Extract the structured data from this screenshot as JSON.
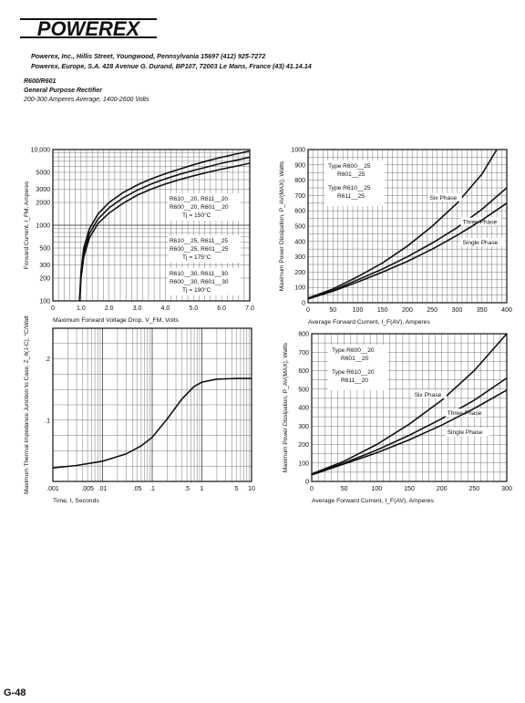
{
  "header": {
    "brand": "POWEREX",
    "address_us": "Powerex, Inc., Hillis Street, Youngwood, Pennsylvania 15697 (412) 925-7272",
    "address_eu": "Powerex, Europe, S.A. 428 Avenue G. Durand, BP107, 72003 Le Mans, France (43) 41.14.14",
    "part_number": "R600/R601",
    "subtitle": "General Purpose Rectifier",
    "rating": "200-300 Amperes Average, 1400-2600 Volts"
  },
  "footer": {
    "page": "G-48"
  },
  "chart_data": [
    {
      "id": "forward-characteristics",
      "type": "line",
      "xlabel": "Maximum Forward Voltage Drop, V_FM, Volts",
      "ylabel": "Forward Current, I_FM, Amperes",
      "x_ticks": [
        "0",
        "1.0",
        "2.0",
        "3.0",
        "4.0",
        "5.0",
        "6.0",
        "7.0"
      ],
      "y_ticks": [
        "100",
        "200",
        "300",
        "500",
        "1000",
        "2000",
        "3000",
        "5000",
        "10,000"
      ],
      "y_scale": "log",
      "xlim": [
        0,
        7
      ],
      "ylim": [
        100,
        10000
      ],
      "annotations": [
        {
          "lines": [
            "R610__20, R611__20",
            "R600__20, R601__20",
            "Tj = 150°C"
          ]
        },
        {
          "lines": [
            "R610__25, R611__25",
            "R600__25, R601__25",
            "Tj = 175°C"
          ]
        },
        {
          "lines": [
            "R610__30, R611__30",
            "R600__30, R601__30",
            "Tj = 190°C"
          ]
        }
      ],
      "series": [
        {
          "x": [
            0.95,
            1.0,
            1.1,
            1.3,
            1.6,
            2.0,
            2.5,
            3.0,
            3.5,
            4.0,
            4.5,
            5.0,
            5.5,
            6.0,
            6.5,
            7.0
          ],
          "y": [
            100,
            250,
            500,
            900,
            1400,
            2000,
            2700,
            3400,
            4100,
            4800,
            5500,
            6300,
            7100,
            7900,
            8700,
            9600
          ]
        },
        {
          "x": [
            0.95,
            1.0,
            1.1,
            1.3,
            1.6,
            2.0,
            2.5,
            3.0,
            3.5,
            4.0,
            4.5,
            5.0,
            5.5,
            6.0,
            6.5,
            7.0
          ],
          "y": [
            100,
            220,
            430,
            780,
            1200,
            1700,
            2300,
            2900,
            3500,
            4100,
            4700,
            5300,
            5900,
            6600,
            7200,
            7900
          ]
        },
        {
          "x": [
            0.95,
            1.0,
            1.1,
            1.3,
            1.6,
            2.0,
            2.5,
            3.0,
            3.5,
            4.0,
            4.5,
            5.0,
            5.5,
            6.0,
            6.5,
            7.0
          ],
          "y": [
            100,
            200,
            380,
            680,
            1050,
            1450,
            1950,
            2500,
            3000,
            3500,
            4000,
            4500,
            5000,
            5500,
            6000,
            6600
          ]
        }
      ]
    },
    {
      "id": "power-dissipation-25",
      "type": "line",
      "xlabel": "Average Forward Current, I_F(AV), Amperes",
      "ylabel": "Maximum Power Dissipation, P_AV(MAX), Watts",
      "x_ticks": [
        "0",
        "50",
        "100",
        "150",
        "200",
        "250",
        "300",
        "350",
        "400"
      ],
      "y_ticks": [
        "0",
        "100",
        "200",
        "300",
        "400",
        "500",
        "600",
        "700",
        "800",
        "900",
        "1000"
      ],
      "xlim": [
        0,
        400
      ],
      "ylim": [
        0,
        1000
      ],
      "legend": [
        "Type R600__25",
        "R601__25",
        "Type R610__25",
        "R611__25"
      ],
      "series": [
        {
          "name": "Six Phase",
          "x": [
            0,
            50,
            100,
            150,
            200,
            250,
            300,
            350,
            380
          ],
          "y": [
            30,
            90,
            170,
            260,
            370,
            500,
            650,
            840,
            1000
          ]
        },
        {
          "name": "Three Phase",
          "x": [
            0,
            50,
            100,
            150,
            200,
            250,
            300,
            350,
            400
          ],
          "y": [
            30,
            80,
            150,
            220,
            300,
            390,
            490,
            610,
            750
          ]
        },
        {
          "name": "Single Phase",
          "x": [
            0,
            50,
            100,
            150,
            200,
            250,
            300,
            350,
            400
          ],
          "y": [
            25,
            75,
            135,
            200,
            270,
            350,
            440,
            540,
            650
          ]
        }
      ]
    },
    {
      "id": "thermal-impedance",
      "type": "line",
      "xlabel": "Time, t, Seconds",
      "ylabel": "Maximum Thermal Impedance Junction to Case, Z_θ(J-C), °C/Watt",
      "x_ticks": [
        ".001",
        ".005",
        ".01",
        ".05",
        ".1",
        ".5",
        "1",
        "5",
        "10"
      ],
      "y_ticks": [
        ".1",
        ".2"
      ],
      "x_scale": "log",
      "xlim": [
        0.001,
        10
      ],
      "ylim": [
        0,
        0.25
      ],
      "series": [
        {
          "x": [
            0.001,
            0.003,
            0.01,
            0.03,
            0.06,
            0.1,
            0.2,
            0.4,
            0.7,
            1,
            2,
            5,
            10
          ],
          "y": [
            0.022,
            0.026,
            0.033,
            0.045,
            0.058,
            0.072,
            0.102,
            0.135,
            0.155,
            0.162,
            0.167,
            0.168,
            0.168
          ]
        }
      ]
    },
    {
      "id": "power-dissipation-20",
      "type": "line",
      "xlabel": "Average Forward Current, I_F(AV), Amperes",
      "ylabel": "Maximum Power Dissipation, P_AV(MAX), Watts",
      "x_ticks": [
        "0",
        "50",
        "100",
        "150",
        "200",
        "250",
        "300"
      ],
      "y_ticks": [
        "0",
        "100",
        "200",
        "300",
        "400",
        "500",
        "600",
        "700",
        "800"
      ],
      "xlim": [
        0,
        300
      ],
      "ylim": [
        0,
        800
      ],
      "legend": [
        "Type R600__20",
        "R601__20",
        "Type R610__20",
        "R611__20"
      ],
      "series": [
        {
          "name": "Six Phase",
          "x": [
            0,
            50,
            100,
            150,
            200,
            250,
            300
          ],
          "y": [
            40,
            110,
            200,
            310,
            440,
            600,
            800
          ]
        },
        {
          "name": "Three Phase",
          "x": [
            0,
            50,
            100,
            150,
            200,
            250,
            300
          ],
          "y": [
            40,
            100,
            170,
            250,
            340,
            440,
            560
          ]
        },
        {
          "name": "Single Phase",
          "x": [
            0,
            50,
            100,
            150,
            200,
            250,
            300
          ],
          "y": [
            35,
            95,
            155,
            225,
            305,
            395,
            495
          ]
        }
      ]
    }
  ]
}
